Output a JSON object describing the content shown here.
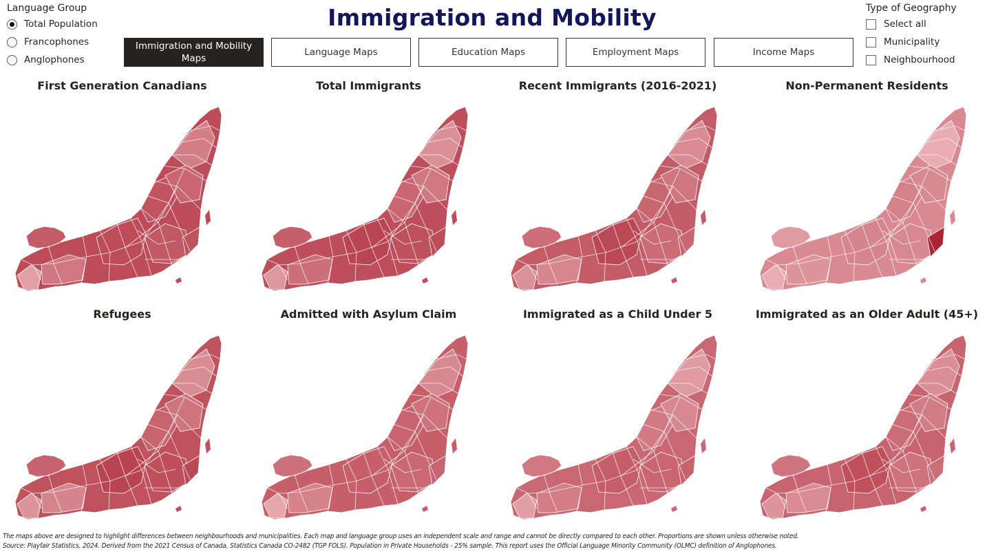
{
  "page_title": "Immigration and Mobility",
  "language_group": {
    "title": "Language Group",
    "options": [
      {
        "label": "Total Population",
        "selected": true
      },
      {
        "label": "Francophones",
        "selected": false
      },
      {
        "label": "Anglophones",
        "selected": false
      }
    ]
  },
  "geography": {
    "title": "Type of Geography",
    "options": [
      {
        "label": "Select all",
        "checked": false
      },
      {
        "label": "Municipality",
        "checked": false
      },
      {
        "label": "Neighbourhood",
        "checked": false
      }
    ]
  },
  "nav": {
    "buttons": [
      {
        "label": "Immigration and Mobility Maps",
        "active": true
      },
      {
        "label": "Language Maps",
        "active": false
      },
      {
        "label": "Education Maps",
        "active": false
      },
      {
        "label": "Employment Maps",
        "active": false
      },
      {
        "label": "Income Maps",
        "active": false
      }
    ]
  },
  "maps": [
    {
      "title": "First Generation Canadians",
      "palette_darkness": 0.72
    },
    {
      "title": "Total Immigrants",
      "palette_darkness": 0.7
    },
    {
      "title": "Recent Immigrants (2016-2021)",
      "palette_darkness": 0.62
    },
    {
      "title": "Non-Permanent Residents",
      "palette_darkness": 0.35
    },
    {
      "title": "Refugees",
      "palette_darkness": 0.68
    },
    {
      "title": "Admitted with Asylum Claim",
      "palette_darkness": 0.6
    },
    {
      "title": "Immigrated as a Child Under 5",
      "palette_darkness": 0.55
    },
    {
      "title": "Immigrated as an Older Adult (45+)",
      "palette_darkness": 0.57
    }
  ],
  "colors": {
    "dark": "#a81c2c",
    "light": "#f2c4c8",
    "title": "#13175a",
    "active_button": "#252423"
  },
  "footer": {
    "line1": "The maps above are designed to highlight differences between neighbourhoods and municipalities. Each map and language group uses an independent scale and range and cannot be directly compared to each other. Proportions are shown unless otherwise noted.",
    "line2": "Source: Playfair Statistics, 2024. Derived from the 2021 Census of Canada, Statistics Canada CO-2482 (TGP FOLS). Population in Private Households - 25% sample. This report uses the Official Language Minority Community (OLMC) definition of Anglophones."
  }
}
